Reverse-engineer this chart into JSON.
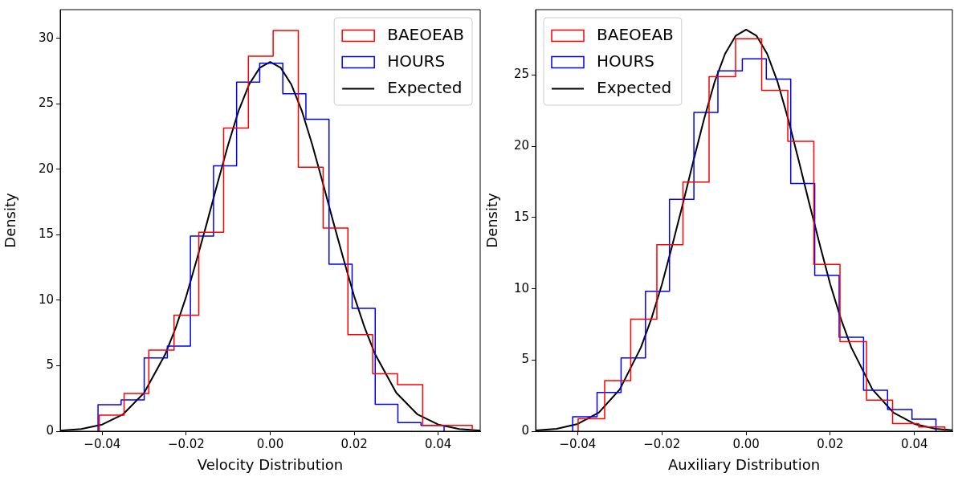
{
  "chart_data": [
    {
      "type": "histogram",
      "xlabel": "Velocity Distribution",
      "ylabel": "Density",
      "xlim": [
        -0.05,
        0.05
      ],
      "ylim": [
        0,
        32.2
      ],
      "xticks": [
        {
          "value": -0.04,
          "label": "−0.04"
        },
        {
          "value": -0.02,
          "label": "−0.02"
        },
        {
          "value": 0,
          "label": "0.00"
        },
        {
          "value": 0.02,
          "label": "0.02"
        },
        {
          "value": 0.04,
          "label": "0.04"
        }
      ],
      "yticks": [
        0,
        5,
        10,
        15,
        20,
        25,
        30
      ],
      "legend": "top right",
      "series": [
        {
          "name": "BAEOEAB",
          "color": "#ff0000",
          "bins": [
            -0.0407,
            -0.0348,
            -0.0289,
            -0.0229,
            -0.017,
            -0.0111,
            -0.0052,
            0.0007,
            0.0067,
            0.0126,
            0.0185,
            0.0244,
            0.0303,
            0.0363,
            0.0422,
            0.0481
          ],
          "values": [
            1.23,
            2.88,
            6.2,
            8.87,
            15.19,
            23.15,
            28.65,
            30.6,
            20.16,
            15.51,
            7.37,
            4.38,
            3.56,
            0.45,
            0.45
          ]
        },
        {
          "name": "HOURS",
          "color": "#0000ff",
          "bins": [
            -0.041,
            -0.0355,
            -0.03,
            -0.0245,
            -0.019,
            -0.0135,
            -0.008,
            -0.0025,
            0.003,
            0.0085,
            0.014,
            0.0195,
            0.025,
            0.0304,
            0.0359,
            0.0414
          ],
          "values": [
            2.03,
            2.39,
            5.59,
            6.5,
            14.9,
            20.27,
            26.66,
            28.1,
            25.77,
            23.83,
            12.76,
            9.38,
            2.06,
            0.66,
            0.45
          ]
        },
        {
          "name": "Expected",
          "type": "line",
          "color": "#000000",
          "x": [
            -0.05,
            -0.045,
            -0.04,
            -0.035,
            -0.03,
            -0.025,
            -0.0225,
            -0.02,
            -0.0175,
            -0.015,
            -0.0125,
            -0.01,
            -0.0075,
            -0.005,
            -0.0025,
            0,
            0.0025,
            0.005,
            0.0075,
            0.01,
            0.0125,
            0.015,
            0.0175,
            0.02,
            0.0225,
            0.025,
            0.03,
            0.035,
            0.04,
            0.045,
            0.05
          ],
          "values": [
            0.05,
            0.17,
            0.51,
            1.3,
            2.94,
            5.87,
            7.9,
            10.3,
            13.1,
            16.0,
            19.0,
            21.9,
            24.5,
            26.5,
            27.76,
            28.2,
            27.76,
            26.5,
            24.5,
            21.9,
            19.0,
            16.0,
            13.1,
            10.3,
            7.9,
            5.87,
            2.94,
            1.3,
            0.51,
            0.17,
            0.05
          ]
        }
      ]
    },
    {
      "type": "histogram",
      "xlabel": "Auxiliary Distribution",
      "ylabel": "Density",
      "xlim": [
        -0.05,
        0.049
      ],
      "ylim": [
        0,
        29.6
      ],
      "xticks": [
        {
          "value": -0.04,
          "label": "−0.04"
        },
        {
          "value": -0.02,
          "label": "−0.02"
        },
        {
          "value": 0,
          "label": "0.00"
        },
        {
          "value": 0.02,
          "label": "0.02"
        },
        {
          "value": 0.04,
          "label": "0.04"
        }
      ],
      "yticks": [
        0,
        5,
        10,
        15,
        20,
        25
      ],
      "legend": "top left",
      "series": [
        {
          "name": "BAEOEAB",
          "color": "#ff0000",
          "bins": [
            -0.0399,
            -0.0336,
            -0.0274,
            -0.0212,
            -0.015,
            -0.0088,
            -0.0025,
            0.0037,
            0.0099,
            0.0161,
            0.0223,
            0.0286,
            0.0348,
            0.041,
            0.0472
          ],
          "values": [
            0.87,
            3.55,
            7.87,
            13.1,
            17.49,
            24.89,
            27.56,
            23.94,
            20.35,
            11.72,
            6.29,
            2.19,
            0.54,
            0.29
          ]
        },
        {
          "name": "HOURS",
          "color": "#0000ff",
          "bins": [
            -0.0412,
            -0.0354,
            -0.0297,
            -0.0239,
            -0.0182,
            -0.0124,
            -0.0067,
            -0.0009,
            0.0048,
            0.0106,
            0.0163,
            0.0221,
            0.0279,
            0.0336,
            0.0394,
            0.0451
          ],
          "values": [
            1.01,
            2.72,
            5.15,
            9.83,
            16.28,
            22.39,
            25.3,
            26.14,
            24.72,
            17.39,
            10.94,
            6.6,
            2.87,
            1.52,
            0.84
          ]
        },
        {
          "name": "Expected",
          "type": "line",
          "color": "#000000",
          "x": [
            -0.05,
            -0.045,
            -0.04,
            -0.035,
            -0.03,
            -0.025,
            -0.0225,
            -0.02,
            -0.0175,
            -0.015,
            -0.0125,
            -0.01,
            -0.0075,
            -0.005,
            -0.0025,
            0,
            0.0025,
            0.005,
            0.0075,
            0.01,
            0.0125,
            0.015,
            0.0175,
            0.02,
            0.0225,
            0.025,
            0.03,
            0.035,
            0.04,
            0.045,
            0.049
          ],
          "values": [
            0.05,
            0.17,
            0.51,
            1.3,
            2.94,
            5.87,
            7.9,
            10.3,
            13.1,
            16.0,
            19.0,
            21.9,
            24.5,
            26.5,
            27.76,
            28.2,
            27.76,
            26.5,
            24.5,
            21.9,
            19.0,
            16.0,
            13.1,
            10.3,
            7.9,
            5.87,
            2.94,
            1.3,
            0.51,
            0.17,
            0.07
          ]
        }
      ]
    }
  ]
}
